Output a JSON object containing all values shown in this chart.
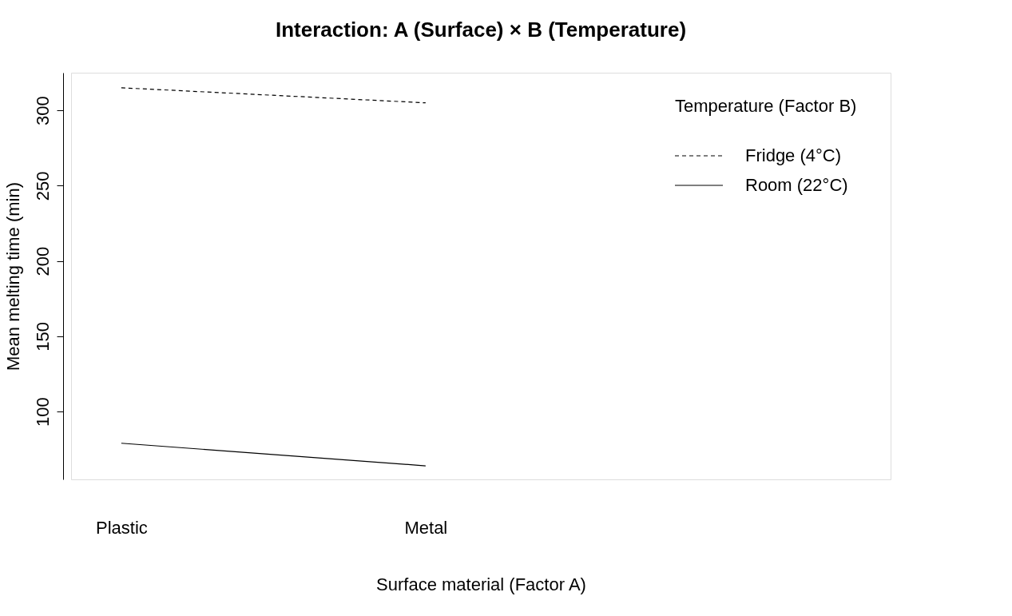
{
  "chart_data": {
    "type": "line",
    "title": "Interaction: A (Surface) × B (Temperature)",
    "xlabel": "Surface material (Factor A)",
    "ylabel": "Mean melting time (min)",
    "legend_title": "Temperature (Factor B)",
    "legend": "top right",
    "grid": false,
    "marker": "none",
    "categories": [
      "Plastic",
      "Metal"
    ],
    "ylim": [
      55,
      325
    ],
    "yticks": [
      100,
      150,
      200,
      250,
      300
    ],
    "series": [
      {
        "name": "Fridge (4°C)",
        "color": "#000000",
        "line_style": "dashed",
        "values": [
          315,
          305
        ]
      },
      {
        "name": "Room (22°C)",
        "color": "#000000",
        "line_style": "solid",
        "values": [
          79,
          64
        ]
      }
    ]
  }
}
